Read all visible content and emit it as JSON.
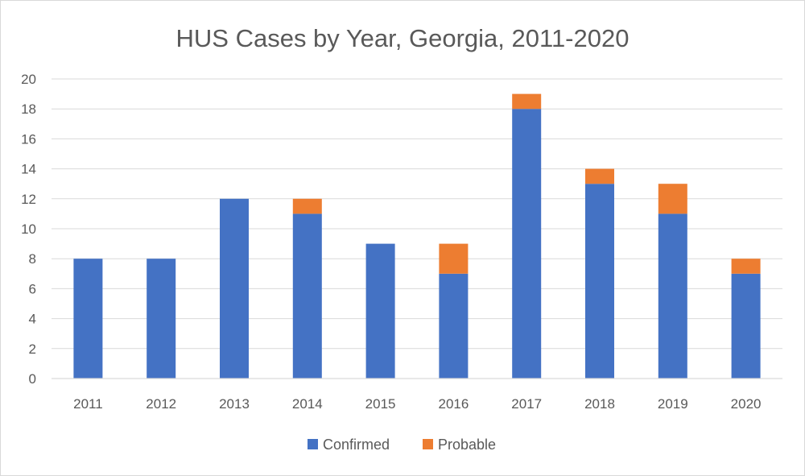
{
  "chart_data": {
    "type": "bar",
    "stacked": true,
    "title": "HUS Cases by Year, Georgia, 2011-2020",
    "xlabel": "",
    "ylabel": "",
    "categories": [
      "2011",
      "2012",
      "2013",
      "2014",
      "2015",
      "2016",
      "2017",
      "2018",
      "2019",
      "2020"
    ],
    "series": [
      {
        "name": "Confirmed",
        "color": "#4472c4",
        "values": [
          8,
          8,
          12,
          11,
          9,
          7,
          18,
          13,
          11,
          7
        ]
      },
      {
        "name": "Probable",
        "color": "#ed7d31",
        "values": [
          0,
          0,
          0,
          1,
          0,
          2,
          1,
          1,
          2,
          1
        ]
      }
    ],
    "ylim": [
      0,
      20
    ],
    "yticks": [
      0,
      2,
      4,
      6,
      8,
      10,
      12,
      14,
      16,
      18,
      20
    ],
    "grid": true,
    "legend_position": "bottom"
  }
}
